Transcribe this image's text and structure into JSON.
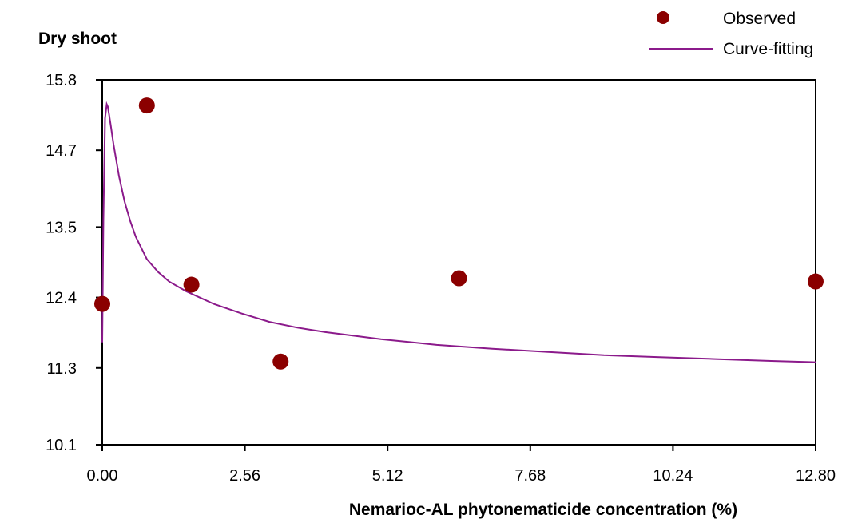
{
  "chart_data": {
    "type": "scatter",
    "title": "",
    "ylabel": "Dry shoot",
    "xlabel": "Nemarioc-AL phytonematicide concentration (%)",
    "xlim": [
      0,
      12.8
    ],
    "ylim": [
      10.1,
      15.8
    ],
    "xticks": [
      "0.00",
      "2.56",
      "5.12",
      "7.68",
      "10.24",
      "12.80"
    ],
    "xtick_values": [
      0,
      2.56,
      5.12,
      7.68,
      10.24,
      12.8
    ],
    "yticks": [
      "15.8",
      "14.7",
      "13.5",
      "12.4",
      "11.3",
      "10.1"
    ],
    "ytick_values": [
      15.8,
      14.7,
      13.5,
      12.4,
      11.3,
      10.1
    ],
    "grid": false,
    "legend_position": "top-right",
    "series": [
      {
        "name": "Observed",
        "kind": "points",
        "color": "#8b0000",
        "x": [
          0.0,
          0.8,
          1.6,
          3.2,
          6.4,
          12.8
        ],
        "y": [
          12.3,
          15.4,
          12.6,
          11.4,
          12.7,
          12.65
        ]
      },
      {
        "name": "Curve-fitting",
        "kind": "line",
        "color": "#8b1a8b",
        "x": [
          0.0,
          0.02,
          0.05,
          0.08,
          0.1,
          0.15,
          0.2,
          0.3,
          0.4,
          0.5,
          0.6,
          0.8,
          1.0,
          1.2,
          1.5,
          2.0,
          2.5,
          3.0,
          3.5,
          4.0,
          5.0,
          6.0,
          7.0,
          8.0,
          9.0,
          10.0,
          11.0,
          12.0,
          12.8
        ],
        "y": [
          11.7,
          13.6,
          15.2,
          15.42,
          15.38,
          15.1,
          14.8,
          14.3,
          13.9,
          13.6,
          13.35,
          13.0,
          12.8,
          12.65,
          12.5,
          12.3,
          12.15,
          12.02,
          11.93,
          11.86,
          11.75,
          11.66,
          11.6,
          11.55,
          11.5,
          11.47,
          11.44,
          11.41,
          11.39
        ]
      }
    ]
  }
}
